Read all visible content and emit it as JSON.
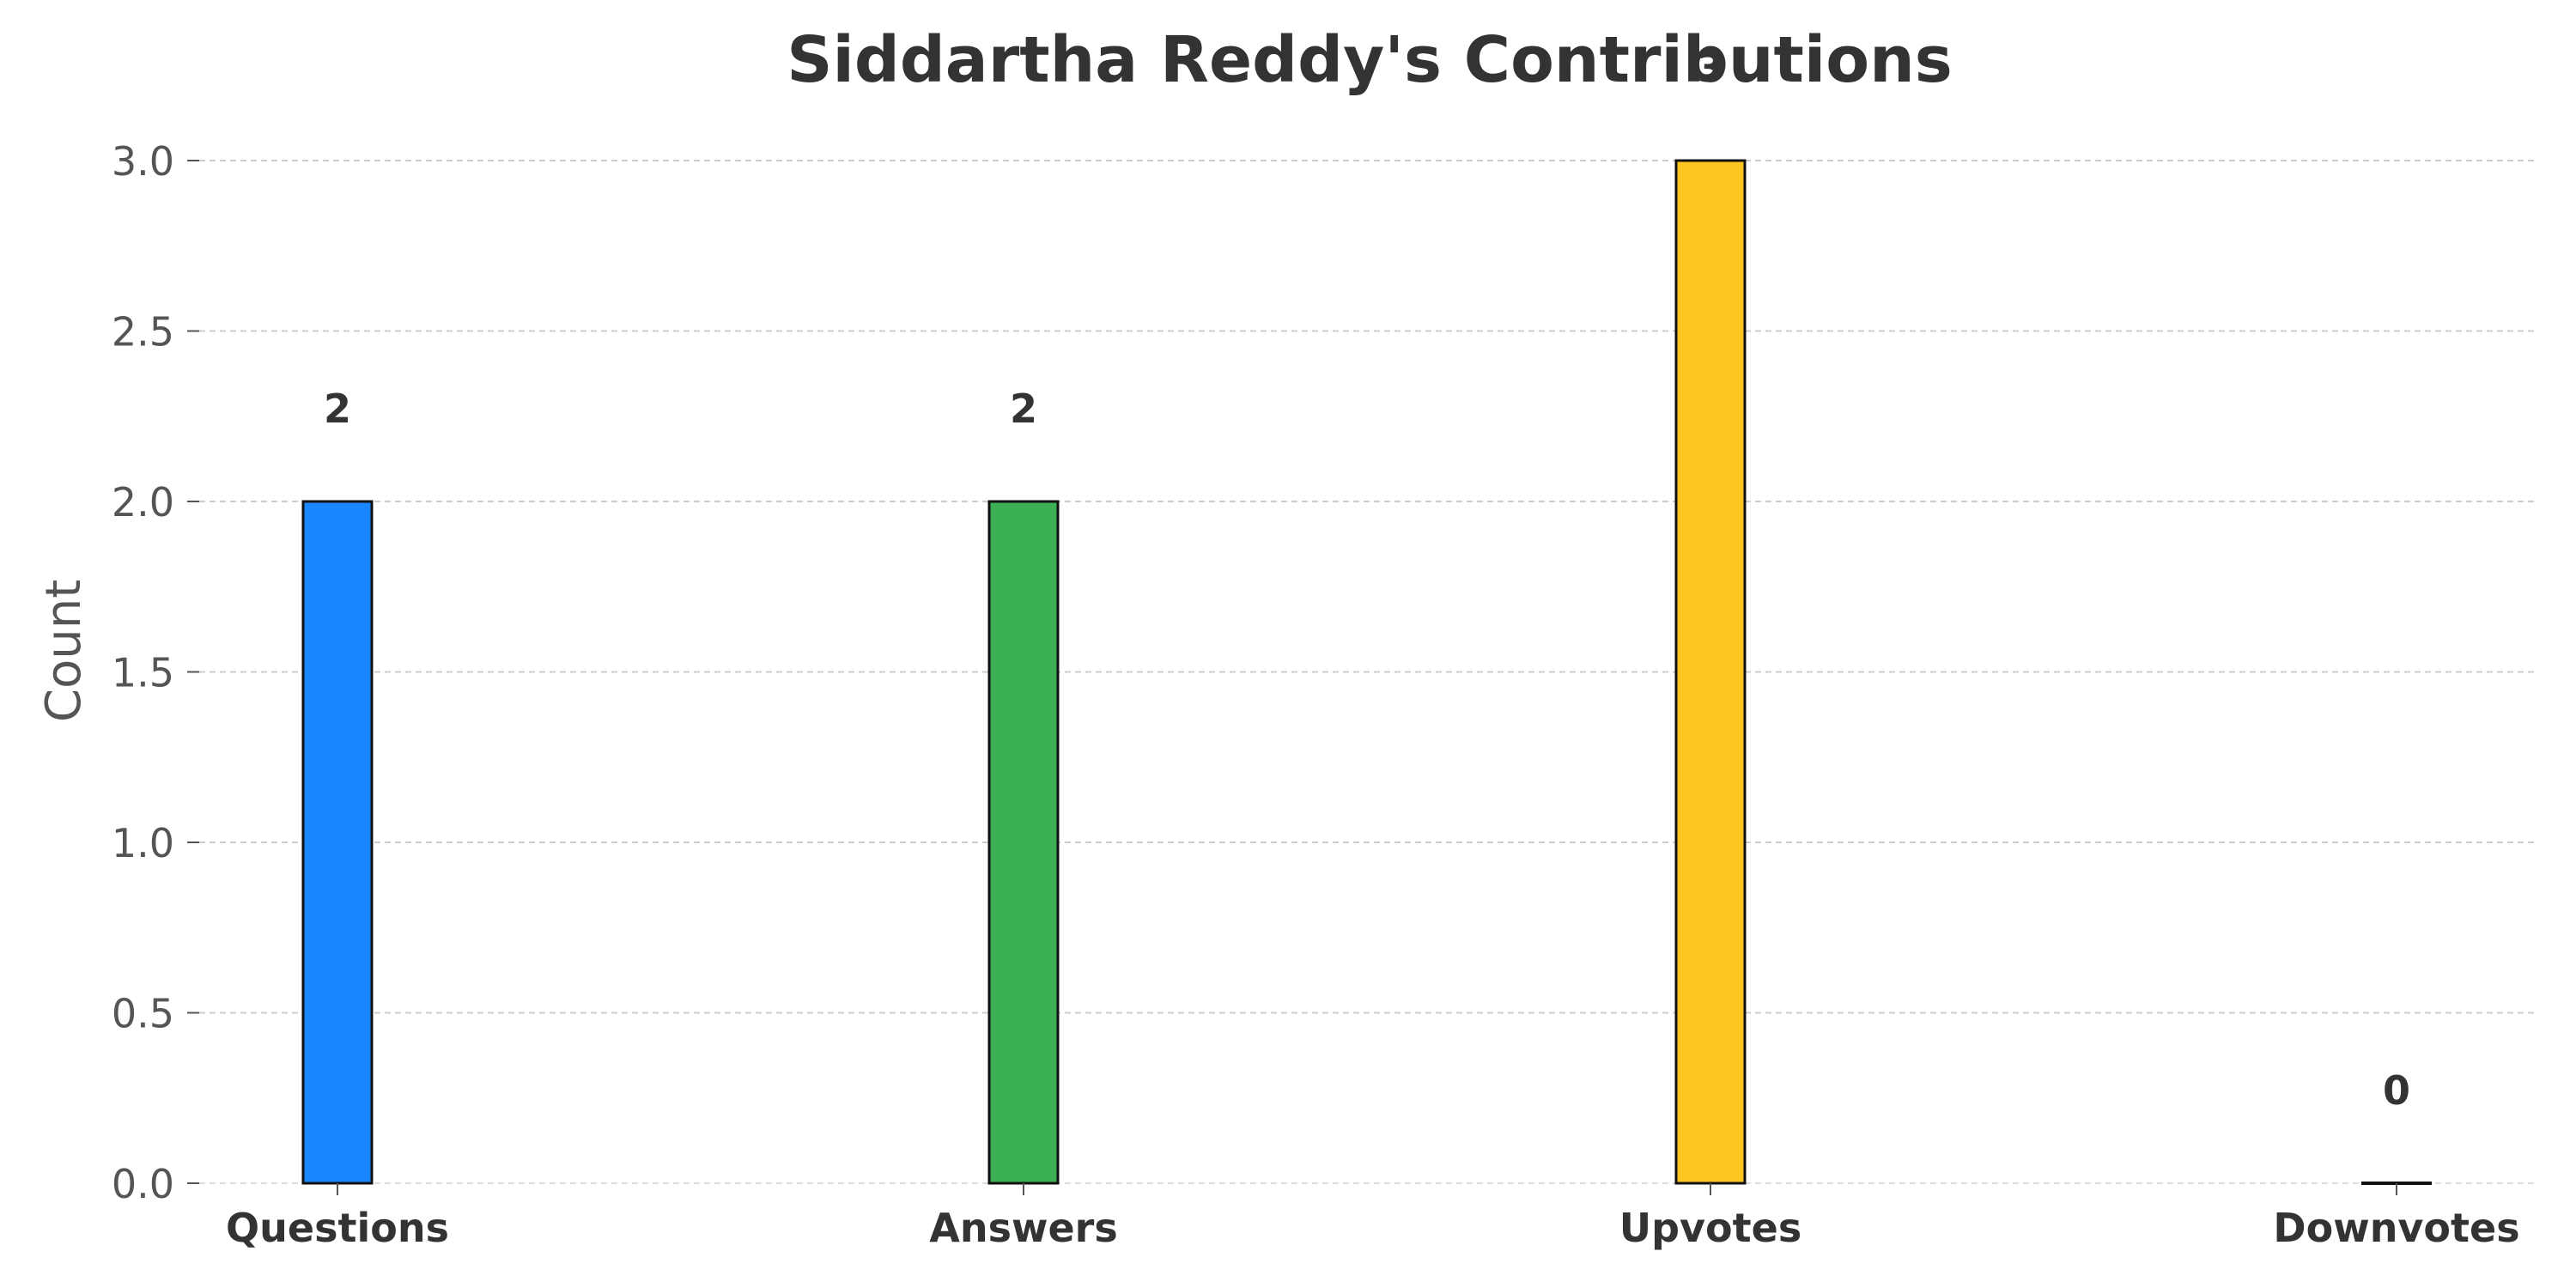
{
  "chart_data": {
    "type": "bar",
    "title": "Siddartha Reddy's Contributions",
    "xlabel": "",
    "ylabel": "Count",
    "categories": [
      "Questions",
      "Answers",
      "Upvotes",
      "Downvotes"
    ],
    "values": [
      2,
      2,
      3,
      0
    ],
    "data_labels": [
      "2",
      "2",
      "3",
      "0"
    ],
    "colors": [
      "#1a86ff",
      "#3cb054",
      "#fdc520",
      "#9e9e9e"
    ],
    "edge_color": "#111111",
    "ylim": [
      0,
      3
    ],
    "yticks": [
      0.0,
      0.5,
      1.0,
      1.5,
      2.0,
      2.5,
      3.0
    ],
    "ytick_labels": [
      "0.0",
      "0.5",
      "1.0",
      "1.5",
      "2.0",
      "2.5",
      "3.0"
    ],
    "grid": true,
    "legend": "none"
  }
}
